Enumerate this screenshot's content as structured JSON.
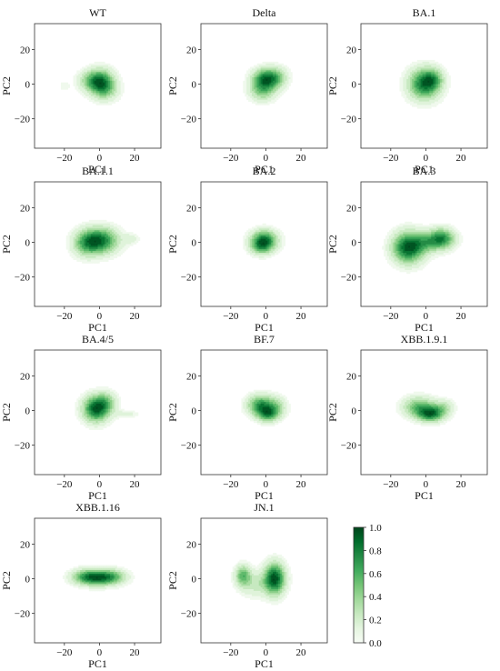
{
  "chart_data": {
    "type": "heatmap",
    "kind": "2D kernel density estimate (filled contours)",
    "xlabel": "PC1",
    "ylabel": "PC2",
    "xlim": [
      -37,
      35
    ],
    "ylim": [
      -37,
      35
    ],
    "xticks": [
      -20,
      0,
      20
    ],
    "yticks": [
      20,
      0,
      -20
    ],
    "grid": false,
    "panels": [
      {
        "title": "WT",
        "blobs": [
          {
            "x": 1,
            "y": 1,
            "sx": 5,
            "sy": 5,
            "w": 1.0
          },
          {
            "x": -5,
            "y": 2,
            "sx": 5,
            "sy": 4,
            "w": 0.45
          },
          {
            "x": 4,
            "y": -4,
            "sx": 5,
            "sy": 4,
            "w": 0.3
          }
        ],
        "tail": {
          "x": -20,
          "y": -1,
          "sx": 2,
          "sy": 2,
          "w": 0.12
        }
      },
      {
        "title": "Delta",
        "blobs": [
          {
            "x": 0,
            "y": 3,
            "sx": 5,
            "sy": 4,
            "w": 1.0
          },
          {
            "x": -2,
            "y": -4,
            "sx": 5,
            "sy": 4,
            "w": 0.5
          },
          {
            "x": 7,
            "y": 4,
            "sx": 4,
            "sy": 4,
            "w": 0.35
          }
        ]
      },
      {
        "title": "BA.1",
        "blobs": [
          {
            "x": -1,
            "y": 0,
            "sx": 6,
            "sy": 6,
            "w": 1.0
          },
          {
            "x": 4,
            "y": 3,
            "sx": 4,
            "sy": 4,
            "w": 0.45
          }
        ]
      },
      {
        "title": "BA.1.1",
        "blobs": [
          {
            "x": 0,
            "y": 1,
            "sx": 7,
            "sy": 5,
            "w": 1.0
          },
          {
            "x": -8,
            "y": -1,
            "sx": 5,
            "sy": 5,
            "w": 0.45
          }
        ],
        "tail": {
          "x": 18,
          "y": 2,
          "sx": 3,
          "sy": 2,
          "w": 0.18
        }
      },
      {
        "title": "BA.2",
        "blobs": [
          {
            "x": -1,
            "y": 1,
            "sx": 5,
            "sy": 4,
            "w": 1.0
          },
          {
            "x": -3,
            "y": -3,
            "sx": 4,
            "sy": 3,
            "w": 0.35
          }
        ]
      },
      {
        "title": "BA.3",
        "blobs": [
          {
            "x": -10,
            "y": -3,
            "sx": 6,
            "sy": 6,
            "w": 1.0
          },
          {
            "x": 9,
            "y": 2,
            "sx": 5,
            "sy": 4,
            "w": 0.8
          },
          {
            "x": 0,
            "y": 0,
            "sx": 5,
            "sy": 4,
            "w": 0.4
          }
        ]
      },
      {
        "title": "BA.4/5",
        "blobs": [
          {
            "x": -2,
            "y": 1,
            "sx": 5,
            "sy": 5,
            "w": 1.0
          },
          {
            "x": 4,
            "y": 5,
            "sx": 4,
            "sy": 4,
            "w": 0.35
          }
        ],
        "tail": {
          "x": 15,
          "y": -2,
          "sx": 5,
          "sy": 1.5,
          "w": 0.15
        }
      },
      {
        "title": "BF.7",
        "blobs": [
          {
            "x": -3,
            "y": 3,
            "sx": 5,
            "sy": 4,
            "w": 1.0
          },
          {
            "x": 1,
            "y": -2,
            "sx": 4,
            "sy": 3,
            "w": 0.85
          },
          {
            "x": 6,
            "y": 2,
            "sx": 4,
            "sy": 4,
            "w": 0.45
          }
        ]
      },
      {
        "title": "XBB.1.9.1",
        "blobs": [
          {
            "x": 3,
            "y": -2,
            "sx": 5,
            "sy": 3,
            "w": 1.0
          },
          {
            "x": -4,
            "y": 2,
            "sx": 6,
            "sy": 4,
            "w": 0.7
          },
          {
            "x": 10,
            "y": 2,
            "sx": 4,
            "sy": 3,
            "w": 0.35
          }
        ]
      },
      {
        "title": "XBB.1.16",
        "blobs": [
          {
            "x": -7,
            "y": 1,
            "sx": 6,
            "sy": 3,
            "w": 1.0
          },
          {
            "x": 6,
            "y": 1,
            "sx": 6,
            "sy": 3,
            "w": 0.95
          },
          {
            "x": -1,
            "y": 0,
            "sx": 5,
            "sy": 3,
            "w": 0.4
          }
        ]
      },
      {
        "title": "JN.1",
        "blobs": [
          {
            "x": 5,
            "y": 0,
            "sx": 4,
            "sy": 6,
            "w": 1.0
          },
          {
            "x": -13,
            "y": 2,
            "sx": 3,
            "sy": 4,
            "w": 0.55
          },
          {
            "x": -6,
            "y": -3,
            "sx": 6,
            "sy": 5,
            "w": 0.25
          }
        ]
      }
    ],
    "colorbar": {
      "min": 0.0,
      "max": 1.0,
      "ticks": [
        "0.0",
        "0.2",
        "0.4",
        "0.6",
        "0.8",
        "1.0"
      ],
      "colormap": "Greens",
      "colors": [
        "#f7fcf5",
        "#e5f5e0",
        "#c7e9c0",
        "#a1d99b",
        "#74c476",
        "#41ab5d",
        "#238b45",
        "#006d2c",
        "#00441b"
      ]
    }
  }
}
